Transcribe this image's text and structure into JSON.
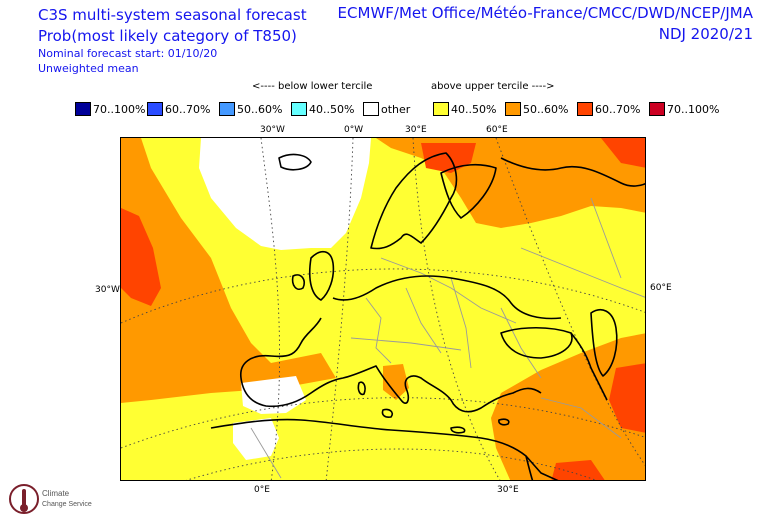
{
  "header": {
    "title1": "C3S multi-system seasonal forecast",
    "title2": "Prob(most likely category of T850)",
    "subline1": "Nominal forecast start: 01/10/20",
    "subline2": "Unweighted mean",
    "centres": "ECMWF/Met Office/Météo-France/CMCC/DWD/NCEP/JMA",
    "season": "NDJ 2020/21"
  },
  "tercile_labels": {
    "below": "<---- below lower tercile",
    "above": "above upper tercile ---->"
  },
  "legend": [
    {
      "label": "70..100%",
      "color": "#000099"
    },
    {
      "label": "60..70%",
      "color": "#2a4cff"
    },
    {
      "label": "50..60%",
      "color": "#4499ff"
    },
    {
      "label": "40..50%",
      "color": "#66ffff"
    },
    {
      "label": "other",
      "color": "#ffffff"
    },
    {
      "label": "40..50%",
      "color": "#ffff33"
    },
    {
      "label": "50..60%",
      "color": "#ff9900"
    },
    {
      "label": "60..70%",
      "color": "#ff4400"
    },
    {
      "label": "70..100%",
      "color": "#cc0022"
    }
  ],
  "axis_labels": {
    "top": [
      "30°W",
      "0°W",
      "30°E",
      "60°E"
    ],
    "left": "30°W",
    "right": "60°E",
    "bottom": [
      "0°E",
      "30°E"
    ]
  },
  "logo_text": [
    "Climate",
    "Change Service"
  ]
}
